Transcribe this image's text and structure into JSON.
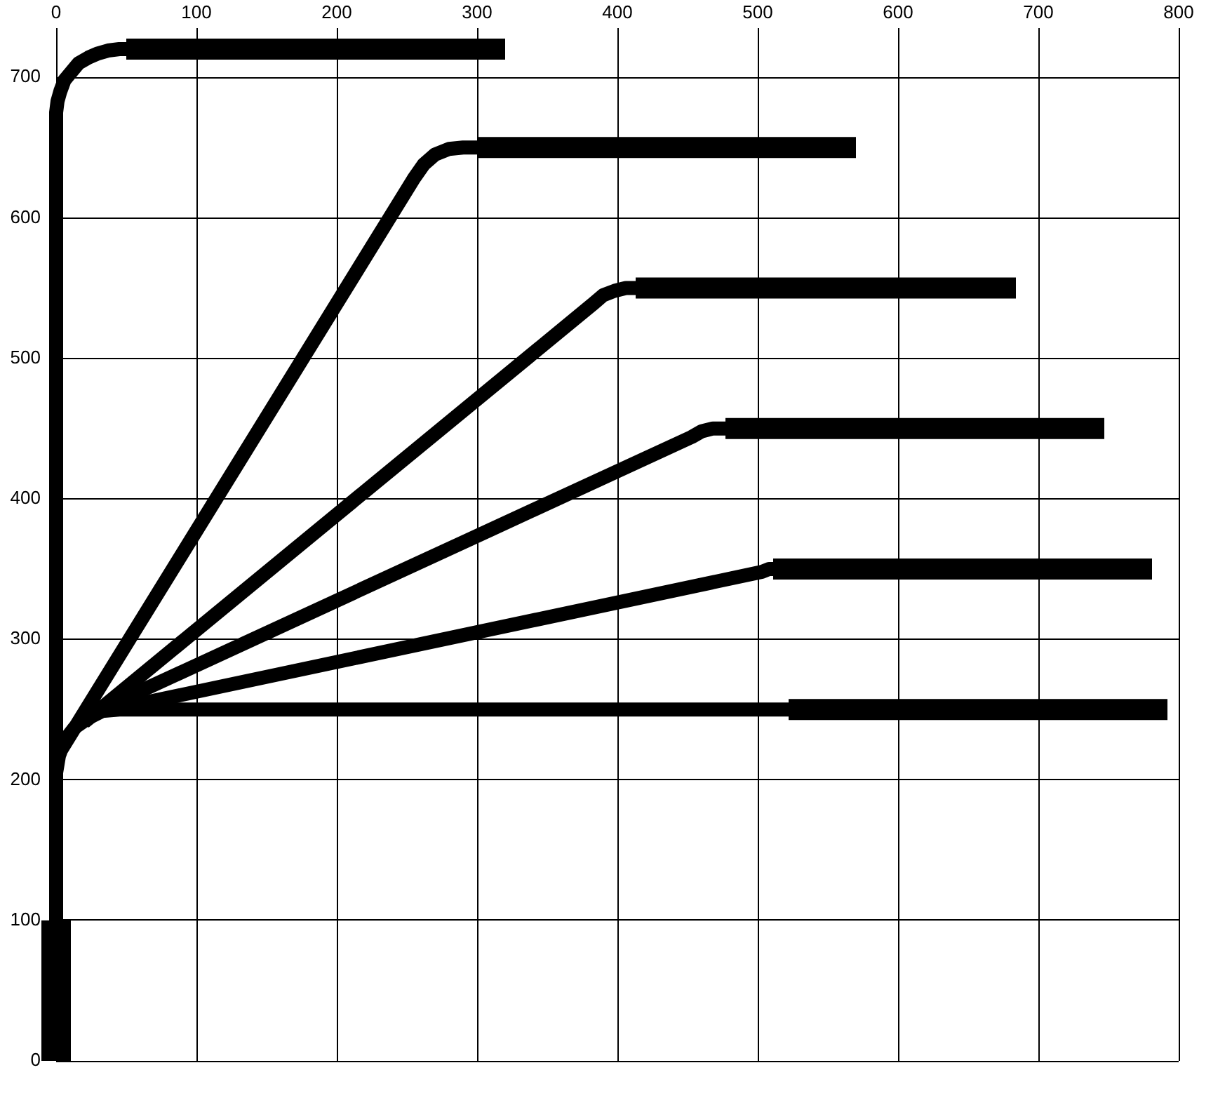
{
  "chart_data": {
    "type": "line",
    "xlim": [
      0,
      800
    ],
    "xticks": [
      0,
      100,
      200,
      300,
      400,
      500,
      600,
      700,
      800
    ],
    "ylim": [
      0,
      735
    ],
    "yticks": [
      0,
      100,
      200,
      300,
      400,
      500,
      600,
      700
    ],
    "grid": true,
    "marker": "none",
    "series": [
      {
        "color": "#000000",
        "x": [
          0,
          0
        ],
        "values": [
          0,
          100
        ]
      },
      {
        "color": "#000000",
        "x": [
          0,
          0,
          1,
          3,
          6,
          11,
          16,
          23,
          30,
          37,
          45,
          50
        ],
        "values": [
          0,
          675,
          683,
          690,
          698,
          704,
          710,
          714,
          717,
          719,
          720,
          720
        ]
      },
      {
        "color": "#000000",
        "x": [
          50,
          320
        ],
        "values": [
          720,
          720
        ]
      },
      {
        "color": "#000000",
        "x": [
          0,
          0,
          2,
          6,
          13,
          23,
          33,
          45,
          522
        ],
        "values": [
          0,
          205,
          217,
          228,
          237,
          244,
          249,
          250,
          250
        ]
      },
      {
        "color": "#000000",
        "x": [
          522,
          792
        ],
        "values": [
          250,
          250
        ]
      },
      {
        "color": "#000000",
        "x": [
          4,
          255,
          262,
          270,
          280,
          290,
          300
        ],
        "values": [
          222,
          628,
          638,
          645,
          649,
          650,
          650
        ]
      },
      {
        "color": "#000000",
        "x": [
          300,
          570
        ],
        "values": [
          650,
          650
        ]
      },
      {
        "color": "#000000",
        "x": [
          20,
          383,
          390,
          398,
          406,
          413
        ],
        "values": [
          241,
          539,
          545,
          548,
          550,
          550
        ]
      },
      {
        "color": "#000000",
        "x": [
          413,
          684
        ],
        "values": [
          550,
          550
        ]
      },
      {
        "color": "#000000",
        "x": [
          25,
          453,
          460,
          468,
          477
        ],
        "values": [
          247,
          444,
          448,
          450,
          450
        ]
      },
      {
        "color": "#000000",
        "x": [
          477,
          747
        ],
        "values": [
          450,
          450
        ]
      },
      {
        "color": "#000000",
        "x": [
          40,
          503,
          508,
          511
        ],
        "values": [
          250,
          348,
          350,
          350
        ]
      },
      {
        "color": "#000000",
        "x": [
          511,
          781
        ],
        "values": [
          350,
          350
        ]
      }
    ]
  }
}
